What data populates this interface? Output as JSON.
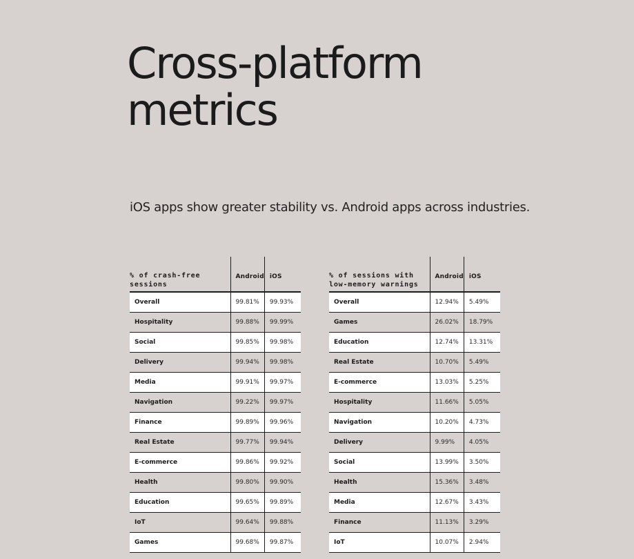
{
  "header": {
    "title_line1": "Cross-platform",
    "title_line2": "metrics",
    "subtitle": "iOS apps show greater stability vs. Android apps across industries."
  },
  "crash_free_table": {
    "headers": [
      "% of crash-free sessions",
      "Android",
      "iOS"
    ],
    "rows": [
      [
        "Overall",
        "99.81%",
        "99.93%"
      ],
      [
        "Hospitality",
        "99.88%",
        "99.99%"
      ],
      [
        "Social",
        "99.85%",
        "99.98%"
      ],
      [
        "Delivery",
        "99.94%",
        "99.98%"
      ],
      [
        "Media",
        "99.91%",
        "99.97%"
      ],
      [
        "Navigation",
        "99.22%",
        "99.97%"
      ],
      [
        "Finance",
        "99.89%",
        "99.96%"
      ],
      [
        "Real Estate",
        "99.77%",
        "99.94%"
      ],
      [
        "E-commerce",
        "99.86%",
        "99.92%"
      ],
      [
        "Health",
        "99.80%",
        "99.90%"
      ],
      [
        "Education",
        "99.65%",
        "99.89%"
      ],
      [
        "IoT",
        "99.64%",
        "99.88%"
      ],
      [
        "Games",
        "99.68%",
        "99.87%"
      ]
    ]
  },
  "low_memory_table": {
    "headers": [
      "% of sessions with low-memory warnings",
      "Android",
      "iOS"
    ],
    "rows": [
      [
        "Overall",
        "12.94%",
        "5.49%"
      ],
      [
        "Games",
        "26.02%",
        "18.79%"
      ],
      [
        "Education",
        "12.74%",
        "13.31%"
      ],
      [
        "Real Estate",
        "10.70%",
        "5.49%"
      ],
      [
        "E-commerce",
        "13.03%",
        "5.25%"
      ],
      [
        "Hospitality",
        "11.66%",
        "5.05%"
      ],
      [
        "Navigation",
        "10.20%",
        "4.73%"
      ],
      [
        "Delivery",
        "9.99%",
        "4.05%"
      ],
      [
        "Social",
        "13.99%",
        "3.50%"
      ],
      [
        "Health",
        "15.36%",
        "3.48%"
      ],
      [
        "Media",
        "12.67%",
        "3.43%"
      ],
      [
        "Finance",
        "11.13%",
        "3.29%"
      ],
      [
        "IoT",
        "10.07%",
        "2.94%"
      ]
    ]
  },
  "colors": {
    "background": "#d7d2cf",
    "text": "#1c1b1b",
    "row_highlight": "#ffffff",
    "rule": "#1c1b1b"
  }
}
